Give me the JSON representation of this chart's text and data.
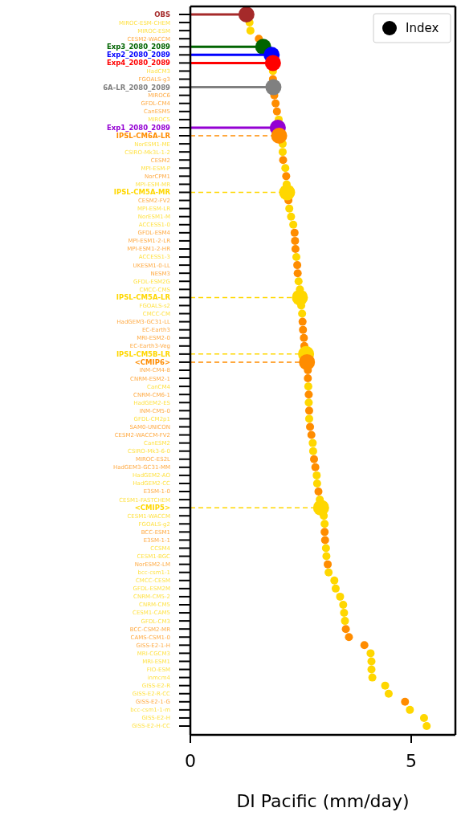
{
  "chart_data": {
    "type": "scatter",
    "orientation": "horizontal",
    "xlabel": "DI Pacific (mm/day)",
    "xlim": [
      0,
      6
    ],
    "xticks": [
      0,
      5
    ],
    "legend": "top right",
    "categories": [
      "OBS",
      "MIROC-ESM-CHEM",
      "MIROC-ESM",
      "CESM2-WACCM",
      "Exp3_2080_2089",
      "Exp2_2080_2089",
      "Exp4_2080_2089",
      "HadCM3",
      "FGOALS-g3",
      "6A-LR_2080_2089",
      "MIROC6",
      "GFDL-CM4",
      "CanESM5",
      "MIROC5",
      "Exp1_2080_2089",
      "IPSL-CM6A-LR",
      "NorESM1-ME",
      "CSIRO-Mk3L-1-2",
      "CESM2",
      "MPI-ESM-P",
      "NorCPM1",
      "MPI-ESM-MR",
      "IPSL-CM5A-MR",
      "CESM2-FV2",
      "MPI-ESM-LR",
      "NorESM1-M",
      "ACCESS1-0",
      "GFDL-ESM4",
      "MPI-ESM1-2-LR",
      "MPI-ESM1-2-HR",
      "ACCESS1-3",
      "UKESM1-0-LL",
      "NESM3",
      "GFDL-ESM2G",
      "CMCC-CMS",
      "IPSL-CM5A-LR",
      "FGOALS-s2",
      "CMCC-CM",
      "HadGEM3-GC31-LL",
      "EC-Earth3",
      "MRI-ESM2-0",
      "EC-Earth3-Veg",
      "IPSL-CM5B-LR",
      "<CMIP6>",
      "INM-CM4-8",
      "CNRM-ESM2-1",
      "CanCM4",
      "CNRM-CM6-1",
      "HadGEM2-ES",
      "INM-CM5-0",
      "GFDL-CM2p1",
      "SAM0-UNICON",
      "CESM2-WACCM-FV2",
      "CanESM2",
      "CSIRO-Mk3-6-0",
      "MIROC-ES2L",
      "HadGEM3-GC31-MM",
      "HadGEM2-AO",
      "HadGEM2-CC",
      "E3SM-1-0",
      "CESM1-FASTCHEM",
      "<CMIP5>",
      "CESM1-WACCM",
      "FGOALS-g2",
      "BCC-ESM1",
      "E3SM-1-1",
      "CCSM4",
      "CESM1-BGC",
      "NorESM2-LM",
      "bcc-csm1-1",
      "CMCC-CESM",
      "GFDL-ESM2M",
      "CNRM-CM5-2",
      "CNRM-CM5",
      "CESM1-CAM5",
      "GFDL-CM3",
      "BCC-CSM2-MR",
      "CAMS-CSM1-0",
      "GISS-E2-1-H",
      "MRI-CGCM3",
      "MRI-ESM1",
      "FIO-ESM",
      "inmcm4",
      "GISS-E2-R",
      "GISS-E2-R-CC",
      "GISS-E2-1-G",
      "bcc-csm1-1-m",
      "GISS-E2-H",
      "GISS-E2-H-CC"
    ],
    "series": [
      {
        "name": "Index",
        "color": "#000000",
        "values": [
          null,
          1.34,
          1.36,
          1.55,
          null,
          null,
          null,
          1.87,
          1.87,
          null,
          1.9,
          1.93,
          1.96,
          2.0,
          null,
          null,
          2.09,
          2.09,
          2.1,
          2.15,
          2.17,
          2.18,
          null,
          2.22,
          2.24,
          2.28,
          2.33,
          2.36,
          2.37,
          2.38,
          2.4,
          2.42,
          2.43,
          2.45,
          2.48,
          null,
          2.51,
          2.53,
          2.54,
          2.55,
          2.57,
          2.58,
          null,
          null,
          2.66,
          2.66,
          2.67,
          2.68,
          2.68,
          2.69,
          2.69,
          2.71,
          2.74,
          2.77,
          2.78,
          2.8,
          2.83,
          2.86,
          2.87,
          2.9,
          2.93,
          null,
          3.02,
          3.04,
          3.04,
          3.05,
          3.07,
          3.08,
          3.11,
          3.13,
          3.26,
          3.29,
          3.39,
          3.46,
          3.48,
          3.5,
          3.52,
          3.59,
          3.94,
          4.08,
          4.1,
          4.1,
          4.12,
          4.41,
          4.49,
          4.86,
          4.97,
          5.29,
          5.35
        ],
        "colors": [
          null,
          "#ffd700",
          "#ffd700",
          "#ff8c00",
          null,
          null,
          null,
          "#ffd700",
          "#ff8c00",
          null,
          "#ff8c00",
          "#ff8c00",
          "#ff8c00",
          "#ffd700",
          null,
          null,
          "#ffd700",
          "#ffd700",
          "#ff8c00",
          "#ffd700",
          "#ff8c00",
          "#ffd700",
          null,
          "#ff8c00",
          "#ffd700",
          "#ffd700",
          "#ffd700",
          "#ff8c00",
          "#ff8c00",
          "#ff8c00",
          "#ffd700",
          "#ff8c00",
          "#ff8c00",
          "#ffd700",
          "#ffd700",
          null,
          "#ffd700",
          "#ffd700",
          "#ff8c00",
          "#ff8c00",
          "#ff8c00",
          "#ff8c00",
          null,
          null,
          "#ff8c00",
          "#ff8c00",
          "#ffd700",
          "#ff8c00",
          "#ffd700",
          "#ff8c00",
          "#ffd700",
          "#ff8c00",
          "#ff8c00",
          "#ffd700",
          "#ffd700",
          "#ff8c00",
          "#ff8c00",
          "#ffd700",
          "#ffd700",
          "#ff8c00",
          "#ffd700",
          null,
          "#ffd700",
          "#ffd700",
          "#ff8c00",
          "#ff8c00",
          "#ffd700",
          "#ffd700",
          "#ff8c00",
          "#ffd700",
          "#ffd700",
          "#ffd700",
          "#ffd700",
          "#ffd700",
          "#ffd700",
          "#ffd700",
          "#ff8c00",
          "#ff8c00",
          "#ff8c00",
          "#ffd700",
          "#ffd700",
          "#ffd700",
          "#ffd700",
          "#ffd700",
          "#ffd700",
          "#ff8c00",
          "#ffd700",
          "#ffd700",
          "#ffd700"
        ]
      },
      {
        "type": "lollipop",
        "line_style": "solid",
        "values": [
          1.27,
          null,
          null,
          null,
          1.65,
          1.84,
          1.87,
          null,
          null,
          1.88,
          null,
          null,
          null,
          null,
          1.98,
          null,
          null,
          null,
          null,
          null,
          null,
          null,
          null,
          null,
          null,
          null,
          null,
          null,
          null,
          null,
          null,
          null,
          null,
          null,
          null,
          null,
          null,
          null,
          null,
          null,
          null,
          null,
          null,
          null,
          null,
          null,
          null,
          null,
          null,
          null,
          null,
          null,
          null,
          null,
          null,
          null,
          null,
          null,
          null,
          null,
          null,
          null,
          null,
          null,
          null,
          null,
          null,
          null,
          null,
          null,
          null,
          null,
          null,
          null,
          null,
          null,
          null,
          null,
          null,
          null,
          null,
          null,
          null,
          null,
          null,
          null,
          null,
          null,
          null
        ],
        "colors": [
          "#a52a2a",
          null,
          null,
          null,
          "#006400",
          "#0000ff",
          "#ff0000",
          null,
          null,
          "#808080",
          null,
          null,
          null,
          null,
          "#9400d3",
          null,
          null,
          null,
          null,
          null,
          null,
          null,
          null,
          null,
          null,
          null,
          null,
          null,
          null,
          null,
          null,
          null,
          null,
          null,
          null,
          null,
          null,
          null,
          null,
          null,
          null,
          null,
          null,
          null,
          null,
          null,
          null,
          null,
          null,
          null,
          null,
          null,
          null,
          null,
          null,
          null,
          null,
          null,
          null,
          null,
          null,
          null,
          null,
          null,
          null,
          null,
          null,
          null,
          null,
          null,
          null,
          null,
          null,
          null,
          null,
          null,
          null,
          null,
          null,
          null,
          null,
          null,
          null,
          null,
          null,
          null,
          null,
          null,
          null
        ]
      },
      {
        "type": "lollipop",
        "line_style": "dashed",
        "values": [
          null,
          null,
          null,
          null,
          null,
          null,
          null,
          null,
          null,
          null,
          null,
          null,
          null,
          null,
          null,
          2.01,
          null,
          null,
          null,
          null,
          null,
          null,
          2.19,
          null,
          null,
          null,
          null,
          null,
          null,
          null,
          null,
          null,
          null,
          null,
          null,
          2.48,
          null,
          null,
          null,
          null,
          null,
          null,
          2.62,
          2.64,
          null,
          null,
          null,
          null,
          null,
          null,
          null,
          null,
          null,
          null,
          null,
          null,
          null,
          null,
          null,
          null,
          null,
          2.96,
          null,
          null,
          null,
          null,
          null,
          null,
          null,
          null,
          null,
          null,
          null,
          null,
          null,
          null,
          null,
          null,
          null,
          null,
          null,
          null,
          null,
          null,
          null,
          null,
          null,
          null,
          null
        ],
        "colors": [
          null,
          null,
          null,
          null,
          null,
          null,
          null,
          null,
          null,
          null,
          null,
          null,
          null,
          null,
          null,
          "#ff8c00",
          null,
          null,
          null,
          null,
          null,
          null,
          "#ffd700",
          null,
          null,
          null,
          null,
          null,
          null,
          null,
          null,
          null,
          null,
          null,
          null,
          "#ffd700",
          null,
          null,
          null,
          null,
          null,
          null,
          "#ffd700",
          "#ff8c00",
          null,
          null,
          null,
          null,
          null,
          null,
          null,
          null,
          null,
          null,
          null,
          null,
          null,
          null,
          null,
          null,
          null,
          "#ffd700",
          null,
          null,
          null,
          null,
          null,
          null,
          null,
          null,
          null,
          null,
          null,
          null,
          null,
          null,
          null,
          null,
          null,
          null,
          null,
          null,
          null,
          null,
          null,
          null,
          null,
          null,
          null
        ]
      }
    ]
  }
}
